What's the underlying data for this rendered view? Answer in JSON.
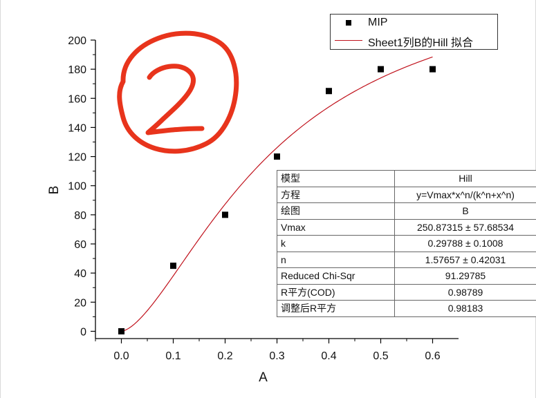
{
  "chart_data": {
    "type": "scatter",
    "xlabel": "A",
    "ylabel": "B",
    "xlim": [
      -0.05,
      0.65
    ],
    "ylim": [
      -5,
      200
    ],
    "xticks": [
      "0.0",
      "0.1",
      "0.2",
      "0.3",
      "0.4",
      "0.5",
      "0.6"
    ],
    "yticks": [
      "0",
      "20",
      "40",
      "60",
      "80",
      "100",
      "120",
      "140",
      "160",
      "180",
      "200"
    ],
    "series": [
      {
        "name": "MIP",
        "kind": "scatter",
        "color": "#000000",
        "marker": "square",
        "x": [
          0.0,
          0.1,
          0.2,
          0.3,
          0.4,
          0.5,
          0.6
        ],
        "y": [
          0,
          45,
          80,
          120,
          165,
          180,
          180
        ]
      },
      {
        "name": "Sheet1列B的Hill 拟合",
        "kind": "line",
        "color": "#c0121c",
        "model": "hill",
        "params": {
          "Vmax": 250.87315,
          "k": 0.29788,
          "n": 1.57657
        },
        "xrange": [
          0.0,
          0.6
        ]
      }
    ],
    "legend": {
      "position": "top-right",
      "entries": [
        "MIP",
        "Sheet1列B的Hill 拟合"
      ]
    },
    "grid": false
  },
  "fit_table": [
    {
      "key": "模型",
      "value": "Hill"
    },
    {
      "key": "方程",
      "value": "y=Vmax*x^n/(k^n+x^n)"
    },
    {
      "key": "绘图",
      "value": "B"
    },
    {
      "key": "Vmax",
      "value": "250.87315 ± 57.68534"
    },
    {
      "key": "k",
      "value": "0.29788 ± 0.1008"
    },
    {
      "key": "n",
      "value": "1.57657 ± 0.42031"
    },
    {
      "key": "Reduced Chi-Sqr",
      "value": "91.29785"
    },
    {
      "key": "R平方(COD)",
      "value": "0.98789"
    },
    {
      "key": "调整后R平方",
      "value": "0.98183"
    }
  ],
  "annotation": {
    "color": "#e8341c"
  }
}
